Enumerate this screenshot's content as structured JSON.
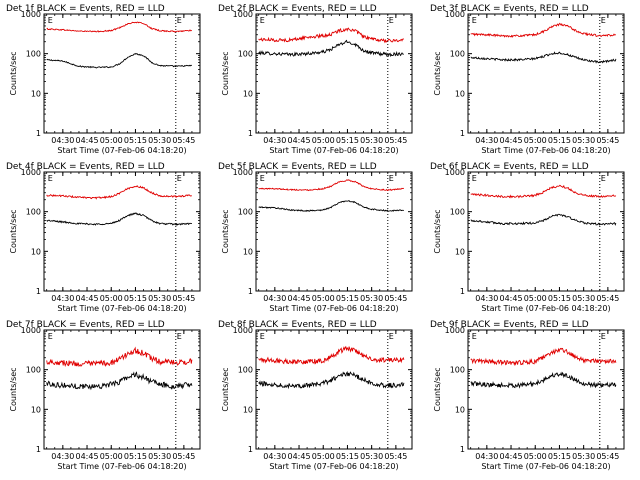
{
  "colors": {
    "events": "#000000",
    "lld": "#e00000",
    "axis": "#000000",
    "marker": "#000000"
  },
  "chart_data": [
    {
      "type": "line",
      "title": "Det 1f BLACK = Events, RED = LLD",
      "xlabel": "Start Time (07-Feb-06 04:18:20)",
      "ylabel": "Counts/sec",
      "yscale": "log",
      "ylim": [
        1,
        1000
      ],
      "yticks": [
        1,
        10,
        100,
        1000
      ],
      "xticks": [
        "04:30",
        "04:45",
        "05:00",
        "05:15",
        "05:30",
        "05:45"
      ],
      "markers": [
        {
          "label": "E",
          "x": "04:20"
        },
        {
          "label": "E",
          "x": "05:40"
        }
      ],
      "noise": 0.015,
      "series": [
        {
          "color": "black",
          "x": [
            "04:20",
            "04:30",
            "04:40",
            "04:50",
            "05:00",
            "05:05",
            "05:10",
            "05:15",
            "05:20",
            "05:25",
            "05:30",
            "05:40",
            "05:50"
          ],
          "y": [
            70,
            65,
            48,
            45,
            46,
            55,
            80,
            100,
            90,
            60,
            50,
            48,
            50
          ]
        },
        {
          "color": "red",
          "x": [
            "04:20",
            "04:30",
            "04:40",
            "04:50",
            "05:00",
            "05:05",
            "05:10",
            "05:15",
            "05:20",
            "05:25",
            "05:30",
            "05:40",
            "05:50"
          ],
          "y": [
            420,
            400,
            370,
            360,
            380,
            450,
            560,
            620,
            580,
            430,
            380,
            360,
            390
          ]
        }
      ]
    },
    {
      "type": "line",
      "title": "Det 2f BLACK = Events, RED = LLD",
      "xlabel": "Start Time (07-Feb-06 04:18:20)",
      "ylabel": "Counts/sec",
      "yscale": "log",
      "ylim": [
        1,
        1000
      ],
      "yticks": [
        1,
        10,
        100,
        1000
      ],
      "xticks": [
        "04:30",
        "04:45",
        "05:00",
        "05:15",
        "05:30",
        "05:45"
      ],
      "markers": [
        {
          "label": "E",
          "x": "04:20"
        },
        {
          "label": "E",
          "x": "05:40"
        }
      ],
      "noise": 0.04,
      "series": [
        {
          "color": "black",
          "x": [
            "04:20",
            "04:30",
            "04:40",
            "04:50",
            "05:00",
            "05:05",
            "05:10",
            "05:15",
            "05:20",
            "05:25",
            "05:30",
            "05:40",
            "05:50"
          ],
          "y": [
            105,
            100,
            95,
            100,
            110,
            130,
            170,
            200,
            170,
            120,
            105,
            95,
            100
          ]
        },
        {
          "color": "red",
          "x": [
            "04:20",
            "04:30",
            "04:40",
            "04:50",
            "05:00",
            "05:05",
            "05:10",
            "05:15",
            "05:20",
            "05:25",
            "05:30",
            "05:40",
            "05:50"
          ],
          "y": [
            230,
            220,
            220,
            260,
            280,
            310,
            380,
            420,
            370,
            270,
            230,
            210,
            220
          ]
        }
      ]
    },
    {
      "type": "line",
      "title": "Det 3f BLACK = Events, RED = LLD",
      "xlabel": "Start Time (07-Feb-06 04:18:20)",
      "ylabel": "Counts/sec",
      "yscale": "log",
      "ylim": [
        1,
        1000
      ],
      "yticks": [
        1,
        10,
        100,
        1000
      ],
      "xticks": [
        "04:30",
        "04:45",
        "05:00",
        "05:15",
        "05:30",
        "05:45"
      ],
      "markers": [
        {
          "label": "E",
          "x": "04:20"
        },
        {
          "label": "E",
          "x": "05:40"
        }
      ],
      "noise": 0.025,
      "series": [
        {
          "color": "black",
          "x": [
            "04:20",
            "04:30",
            "04:40",
            "04:50",
            "05:00",
            "05:05",
            "05:10",
            "05:15",
            "05:20",
            "05:25",
            "05:30",
            "05:40",
            "05:50"
          ],
          "y": [
            80,
            75,
            70,
            70,
            75,
            85,
            100,
            105,
            95,
            80,
            70,
            60,
            70
          ]
        },
        {
          "color": "red",
          "x": [
            "04:20",
            "04:30",
            "04:40",
            "04:50",
            "05:00",
            "05:05",
            "05:10",
            "05:15",
            "05:20",
            "05:25",
            "05:30",
            "05:40",
            "05:50"
          ],
          "y": [
            310,
            300,
            280,
            280,
            300,
            360,
            470,
            550,
            500,
            380,
            320,
            280,
            300
          ]
        }
      ]
    },
    {
      "type": "line",
      "title": "Det 4f BLACK = Events, RED = LLD",
      "xlabel": "Start Time (07-Feb-06 04:18:20)",
      "ylabel": "Counts/sec",
      "yscale": "log",
      "ylim": [
        1,
        1000
      ],
      "yticks": [
        1,
        10,
        100,
        1000
      ],
      "xticks": [
        "04:30",
        "04:45",
        "05:00",
        "05:15",
        "05:30",
        "05:45"
      ],
      "markers": [
        {
          "label": "E",
          "x": "04:20"
        },
        {
          "label": "E",
          "x": "05:40"
        }
      ],
      "noise": 0.02,
      "series": [
        {
          "color": "black",
          "x": [
            "04:20",
            "04:30",
            "04:40",
            "04:50",
            "05:00",
            "05:05",
            "05:10",
            "05:15",
            "05:20",
            "05:25",
            "05:30",
            "05:40",
            "05:50"
          ],
          "y": [
            60,
            55,
            50,
            48,
            50,
            60,
            80,
            90,
            80,
            60,
            50,
            48,
            50
          ]
        },
        {
          "color": "red",
          "x": [
            "04:20",
            "04:30",
            "04:40",
            "04:50",
            "05:00",
            "05:05",
            "05:10",
            "05:15",
            "05:20",
            "05:25",
            "05:30",
            "05:40",
            "05:50"
          ],
          "y": [
            260,
            250,
            230,
            220,
            240,
            290,
            380,
            440,
            400,
            300,
            250,
            240,
            260
          ]
        }
      ]
    },
    {
      "type": "line",
      "title": "Det 5f BLACK = Events, RED = LLD",
      "xlabel": "Start Time (07-Feb-06 04:18:20)",
      "ylabel": "Counts/sec",
      "yscale": "log",
      "ylim": [
        1,
        1000
      ],
      "yticks": [
        1,
        10,
        100,
        1000
      ],
      "xticks": [
        "04:30",
        "04:45",
        "05:00",
        "05:15",
        "05:30",
        "05:45"
      ],
      "markers": [
        {
          "label": "E",
          "x": "04:20"
        },
        {
          "label": "E",
          "x": "05:40"
        }
      ],
      "noise": 0.015,
      "series": [
        {
          "color": "black",
          "x": [
            "04:20",
            "04:30",
            "04:40",
            "04:50",
            "05:00",
            "05:05",
            "05:10",
            "05:15",
            "05:20",
            "05:25",
            "05:30",
            "05:40",
            "05:50"
          ],
          "y": [
            130,
            125,
            110,
            105,
            110,
            130,
            170,
            190,
            170,
            130,
            115,
            105,
            110
          ]
        },
        {
          "color": "red",
          "x": [
            "04:20",
            "04:30",
            "04:40",
            "04:50",
            "05:00",
            "05:05",
            "05:10",
            "05:15",
            "05:20",
            "05:25",
            "05:30",
            "05:40",
            "05:50"
          ],
          "y": [
            380,
            380,
            360,
            350,
            380,
            440,
            560,
            620,
            570,
            430,
            380,
            350,
            380
          ]
        }
      ]
    },
    {
      "type": "line",
      "title": "Det 6f BLACK = Events, RED = LLD",
      "xlabel": "Start Time (07-Feb-06 04:18:20)",
      "ylabel": "Counts/sec",
      "yscale": "log",
      "ylim": [
        1,
        1000
      ],
      "yticks": [
        1,
        10,
        100,
        1000
      ],
      "xticks": [
        "04:30",
        "04:45",
        "05:00",
        "05:15",
        "05:30",
        "05:45"
      ],
      "markers": [
        {
          "label": "E",
          "x": "04:20"
        },
        {
          "label": "E",
          "x": "05:40"
        }
      ],
      "noise": 0.025,
      "series": [
        {
          "color": "black",
          "x": [
            "04:20",
            "04:30",
            "04:40",
            "04:50",
            "05:00",
            "05:05",
            "05:10",
            "05:15",
            "05:20",
            "05:25",
            "05:30",
            "05:40",
            "05:50"
          ],
          "y": [
            60,
            55,
            50,
            50,
            52,
            60,
            75,
            85,
            75,
            60,
            52,
            48,
            50
          ]
        },
        {
          "color": "red",
          "x": [
            "04:20",
            "04:30",
            "04:40",
            "04:50",
            "05:00",
            "05:05",
            "05:10",
            "05:15",
            "05:20",
            "05:25",
            "05:30",
            "05:40",
            "05:50"
          ],
          "y": [
            270,
            260,
            240,
            240,
            260,
            310,
            400,
            450,
            400,
            300,
            260,
            240,
            250
          ]
        }
      ]
    },
    {
      "type": "line",
      "title": "Det 7f BLACK = Events, RED = LLD",
      "xlabel": "Start Time (07-Feb-06 04:18:20)",
      "ylabel": "Counts/sec",
      "yscale": "log",
      "ylim": [
        1,
        1000
      ],
      "yticks": [
        1,
        10,
        100,
        1000
      ],
      "xticks": [
        "04:30",
        "04:45",
        "05:00",
        "05:15",
        "05:30",
        "05:45"
      ],
      "markers": [
        {
          "label": "E",
          "x": "04:20"
        },
        {
          "label": "E",
          "x": "05:40"
        }
      ],
      "noise": 0.07,
      "series": [
        {
          "color": "black",
          "x": [
            "04:20",
            "04:30",
            "04:40",
            "04:50",
            "05:00",
            "05:05",
            "05:10",
            "05:15",
            "05:20",
            "05:25",
            "05:30",
            "05:40",
            "05:50"
          ],
          "y": [
            45,
            40,
            38,
            38,
            42,
            50,
            65,
            75,
            65,
            50,
            42,
            38,
            42
          ]
        },
        {
          "color": "red",
          "x": [
            "04:20",
            "04:30",
            "04:40",
            "04:50",
            "05:00",
            "05:05",
            "05:10",
            "05:15",
            "05:20",
            "05:25",
            "05:30",
            "05:40",
            "05:50"
          ],
          "y": [
            160,
            150,
            140,
            140,
            150,
            180,
            250,
            300,
            260,
            190,
            160,
            150,
            160
          ]
        }
      ]
    },
    {
      "type": "line",
      "title": "Det 8f BLACK = Events, RED = LLD",
      "xlabel": "Start Time (07-Feb-06 04:18:20)",
      "ylabel": "Counts/sec",
      "yscale": "log",
      "ylim": [
        1,
        1000
      ],
      "yticks": [
        1,
        10,
        100,
        1000
      ],
      "xticks": [
        "04:30",
        "04:45",
        "05:00",
        "05:15",
        "05:30",
        "05:45"
      ],
      "markers": [
        {
          "label": "E",
          "x": "04:20"
        },
        {
          "label": "E",
          "x": "05:40"
        }
      ],
      "noise": 0.06,
      "series": [
        {
          "color": "black",
          "x": [
            "04:20",
            "04:30",
            "04:40",
            "04:50",
            "05:00",
            "05:05",
            "05:10",
            "05:15",
            "05:20",
            "05:25",
            "05:30",
            "05:40",
            "05:50"
          ],
          "y": [
            45,
            42,
            40,
            40,
            45,
            55,
            70,
            80,
            70,
            55,
            45,
            40,
            42
          ]
        },
        {
          "color": "red",
          "x": [
            "04:20",
            "04:30",
            "04:40",
            "04:50",
            "05:00",
            "05:05",
            "05:10",
            "05:15",
            "05:20",
            "05:25",
            "05:30",
            "05:40",
            "05:50"
          ],
          "y": [
            180,
            170,
            160,
            160,
            170,
            210,
            290,
            350,
            300,
            220,
            180,
            170,
            180
          ]
        }
      ]
    },
    {
      "type": "line",
      "title": "Det 9f BLACK = Events, RED = LLD",
      "xlabel": "Start Time (07-Feb-06 04:18:20)",
      "ylabel": "Counts/sec",
      "yscale": "log",
      "ylim": [
        1,
        1000
      ],
      "yticks": [
        1,
        10,
        100,
        1000
      ],
      "xticks": [
        "04:30",
        "04:45",
        "05:00",
        "05:15",
        "05:30",
        "05:45"
      ],
      "markers": [
        {
          "label": "E",
          "x": "04:20"
        },
        {
          "label": "E",
          "x": "05:40"
        }
      ],
      "noise": 0.055,
      "series": [
        {
          "color": "black",
          "x": [
            "04:20",
            "04:30",
            "04:40",
            "04:50",
            "05:00",
            "05:05",
            "05:10",
            "05:15",
            "05:20",
            "05:25",
            "05:30",
            "05:40",
            "05:50"
          ],
          "y": [
            45,
            42,
            40,
            40,
            45,
            55,
            70,
            78,
            70,
            55,
            45,
            40,
            42
          ]
        },
        {
          "color": "red",
          "x": [
            "04:20",
            "04:30",
            "04:40",
            "04:50",
            "05:00",
            "05:05",
            "05:10",
            "05:15",
            "05:20",
            "05:25",
            "05:30",
            "05:40",
            "05:50"
          ],
          "y": [
            170,
            160,
            150,
            150,
            160,
            200,
            270,
            320,
            280,
            210,
            170,
            160,
            170
          ]
        }
      ]
    }
  ]
}
